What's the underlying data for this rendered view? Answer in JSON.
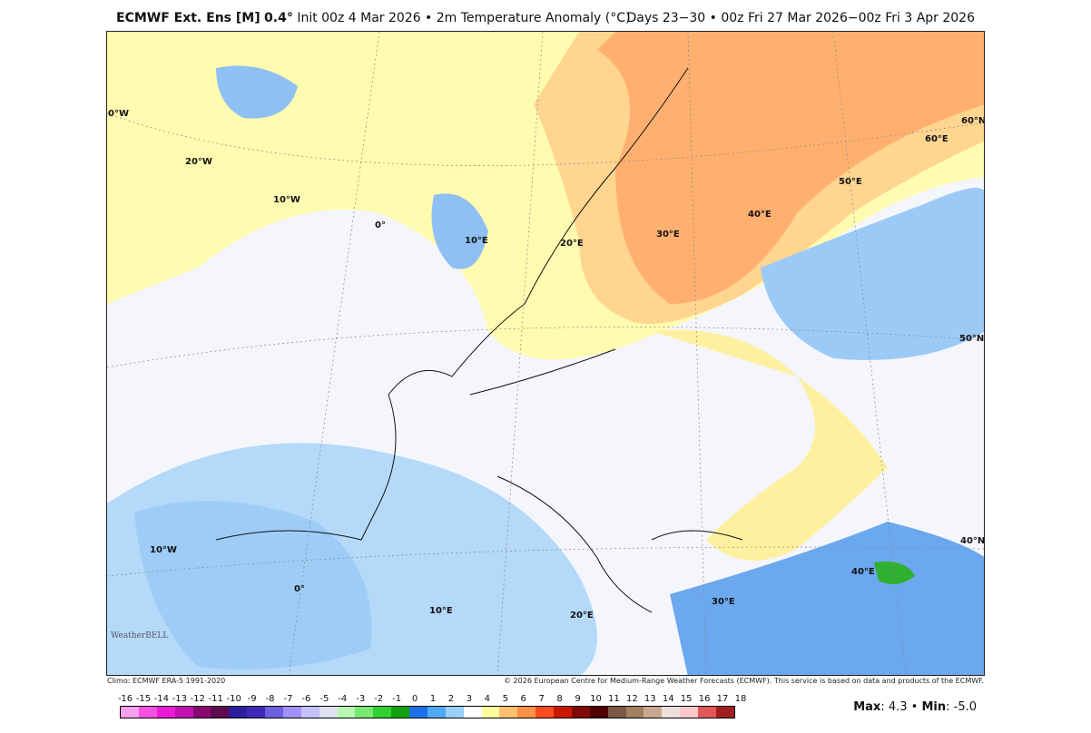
{
  "header": {
    "model": "ECMWF Ext. Ens [M]",
    "resolution": "0.4°",
    "init": "Init 00z 4 Mar 2026 • 2m Temperature Anomaly (°C)",
    "valid": "Days 23−30 • 00z Fri 27 Mar 2026−00z Fri 3 Apr 2026"
  },
  "map_labels": [
    {
      "text": "0°W"
    },
    {
      "text": "20°W"
    },
    {
      "text": "10°W"
    },
    {
      "text": "0°"
    },
    {
      "text": "10°E"
    },
    {
      "text": "20°E"
    },
    {
      "text": "30°E"
    },
    {
      "text": "40°E"
    },
    {
      "text": "50°E"
    },
    {
      "text": "60°E"
    },
    {
      "text": "60°N"
    },
    {
      "text": "50°N"
    },
    {
      "text": "40°N"
    },
    {
      "text": "40°E"
    },
    {
      "text": "30°E"
    },
    {
      "text": "20°E"
    },
    {
      "text": "10°E"
    },
    {
      "text": "0°"
    },
    {
      "text": "10°W"
    }
  ],
  "footer": {
    "climo": "Climo: ECMWF ERA-5 1991-2020",
    "copyright": "© 2026 European Centre for Medium-Range Weather Forecasts (ECMWF). This service is based on data and products of the ECMWF."
  },
  "logo": "WeatherBELL",
  "colorbar": {
    "ticks": [
      "-16",
      "-15",
      "-14",
      "-13",
      "-12",
      "-11",
      "-10",
      "-9",
      "-8",
      "-7",
      "-6",
      "-5",
      "-4",
      "-3",
      "-2",
      "-1",
      "0",
      "1",
      "2",
      "3",
      "4",
      "5",
      "6",
      "7",
      "8",
      "9",
      "10",
      "11",
      "12",
      "13",
      "14",
      "15",
      "16",
      "17",
      "18"
    ],
    "colors": [
      "#f9a0ec",
      "#f550e0",
      "#ec1ad6",
      "#c010b0",
      "#880a70",
      "#600850",
      "#2c1e9c",
      "#4028b8",
      "#6c60dc",
      "#a090f8",
      "#c4c0fc",
      "#e0e0f4",
      "#b8f8b0",
      "#78e870",
      "#30d030",
      "#10a010",
      "#1e70e8",
      "#50a8f4",
      "#98d0f8",
      "#ffffff",
      "#ffffa0",
      "#ffc070",
      "#ff9048",
      "#ff4c1c",
      "#c81800",
      "#800808",
      "#500000",
      "#7c5848",
      "#a08060",
      "#c8a890",
      "#ece0dc",
      "#fcc8c8",
      "#e05858",
      "#a02020"
    ]
  },
  "stats": {
    "max_label": "Max",
    "max": "4.3",
    "min_label": "Min",
    "min": "-5.0"
  }
}
